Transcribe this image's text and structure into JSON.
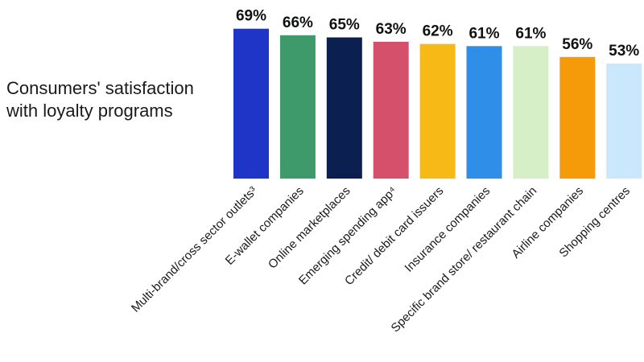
{
  "chart_data": {
    "type": "bar",
    "title": "Consumers' satisfaction with loyalty programs",
    "categories": [
      "Multi-brand/cross sector outlets³",
      "E-wallet companies",
      "Online marketplaces",
      "Emerging spending app⁴",
      "Credit/ debit card issuers",
      "Insurance companies",
      "Specific brand store/ restaurant chain",
      "Airline companies",
      "Shopping centres"
    ],
    "values": [
      69,
      66,
      65,
      63,
      62,
      61,
      61,
      56,
      53
    ],
    "value_labels": [
      "69%",
      "66%",
      "65%",
      "63%",
      "62%",
      "61%",
      "61%",
      "56%",
      "53%"
    ],
    "colors": [
      "#1e35c8",
      "#3f9a6b",
      "#0b2050",
      "#d5506a",
      "#f7b916",
      "#2f8ee8",
      "#d6efc6",
      "#f59b0a",
      "#c9e8fb"
    ],
    "xlabel": "",
    "ylabel": "",
    "unit": "%"
  }
}
